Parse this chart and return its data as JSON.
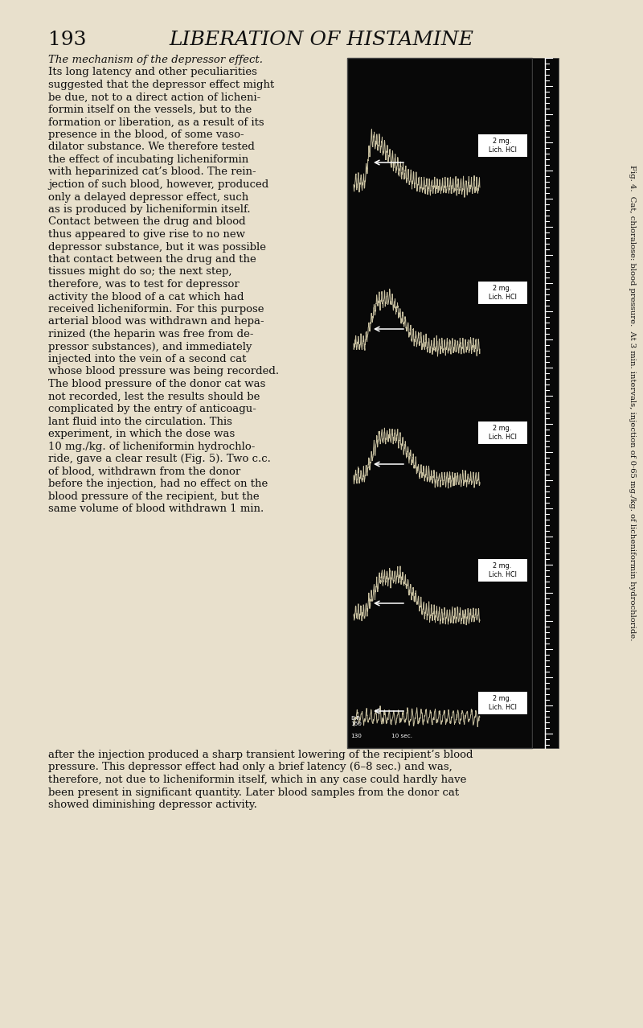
{
  "page_bg": "#e8e0cc",
  "page_number": "193",
  "page_header": "LIBERATION OF HISTAMINE",
  "header_font_size": 18,
  "body_text_left": "The mechanism of the depressor effect.\nIts long latency and other peculiarities\nsuggested that the depressor effect might\nbe due, not to a direct action of licheni-\nformin itself on the vessels, but to the\nformation or liberation, as a result of its\npresence in the blood, of some vaso-\ndilator substance. We therefore tested\nthe effect of incubating licheniformin\nwith heparinized cat’s blood. The rein-\njection of such blood, however, produced\nonly a delayed depressor effect, such\nas is produced by licheniformin itself.\nContact between the drug and blood\nthus appeared to give rise to no new\ndepressor substance, but it was possible\nthat contact between the drug and the\ntissues might do so; the next step,\ntherefore, was to test for depressor\nactivity the blood of a cat which had\nreceived licheniformin. For this purpose\narterial blood was withdrawn and hepa-\nrinized (the heparin was free from de-\npressor substances), and immediately\ninjected into the vein of a second cat\nwhose blood pressure was being recorded.\nThe blood pressure of the donor cat was\nnot recorded, lest the results should be\ncomplicated by the entry of anticoagu-\nlant fluid into the circulation. This\nexperiment, in which the dose was\n10 mg./kg. of licheniformin hydrochlo-\nride, gave a clear result (Fig. 5). Two c.c.\nof blood, withdrawn from the donor\nbefore the injection, had no effect on the\nblood pressure of the recipient, but the\nsame volume of blood withdrawn 1 min.",
  "body_text_bottom": "after the injection produced a sharp transient lowering of the recipient’s blood\npressure. This depressor effect had only a brief latency (6–8 sec.) and was,\ntherefore, not due to licheniformin itself, which in any case could hardly have\nbeen present in significant quantity. Later blood samples from the donor cat\nshowed diminishing depressor activity.",
  "fig_caption": "Fig. 4.  Cat, chloralose: blood pressure.  At 3 min. intervals, injection of 0·65 mg./kg. of licheniformin hydrochloride.",
  "trace_color": "#c8c0a0",
  "body_fontsize": 9.5,
  "body_fontfamily": "serif"
}
